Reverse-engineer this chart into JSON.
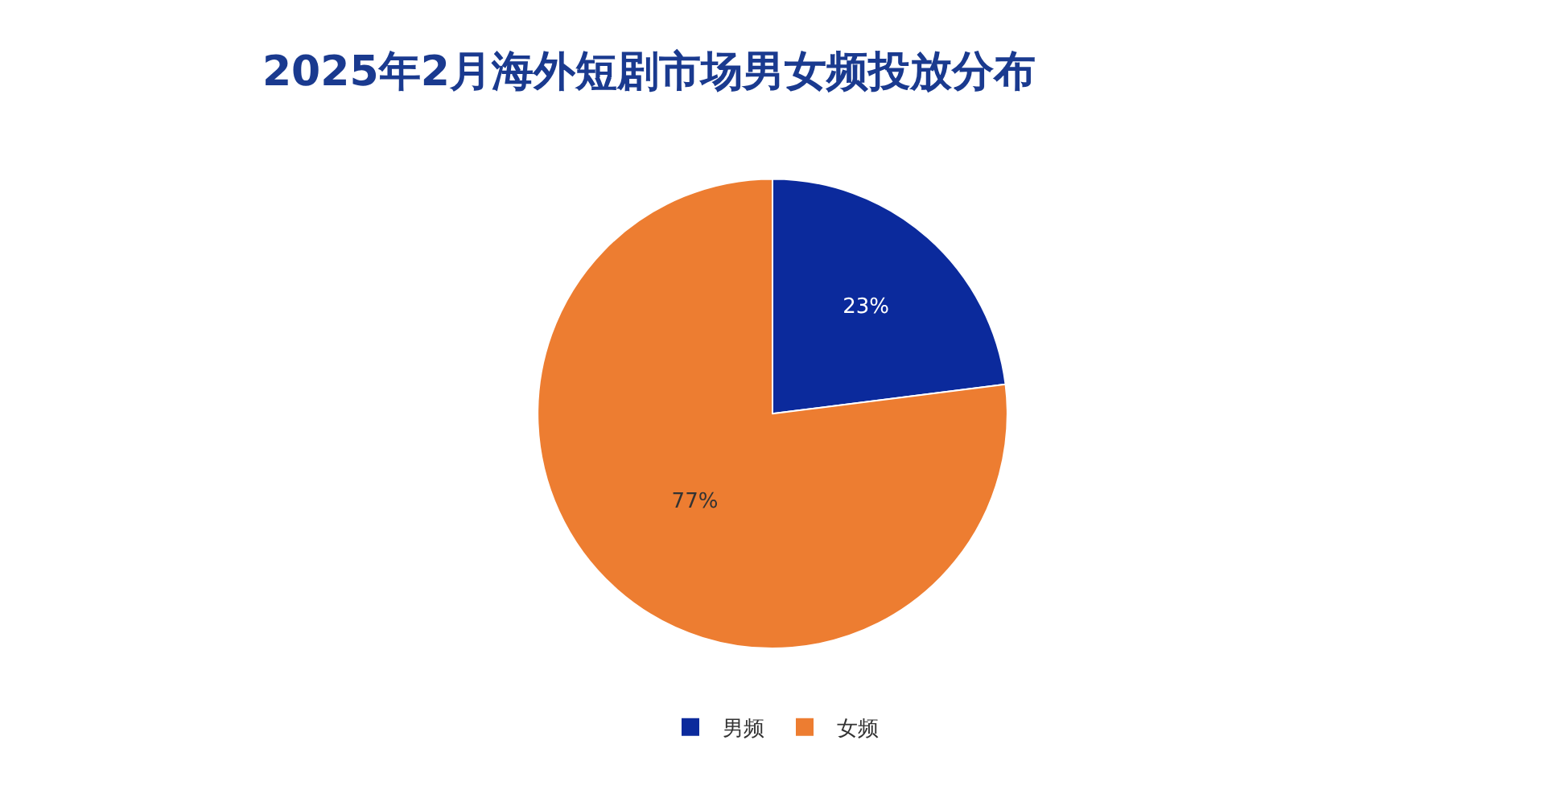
{
  "chart_data": {
    "type": "pie",
    "title": "2025年2月海外短剧市场男女频投放分布",
    "categories": [
      "男频",
      "女频"
    ],
    "values": [
      23,
      77
    ],
    "value_labels": [
      "23%",
      "77%"
    ],
    "colors": [
      "#0b2a9c",
      "#ed7d31"
    ],
    "legend": "bottom"
  }
}
